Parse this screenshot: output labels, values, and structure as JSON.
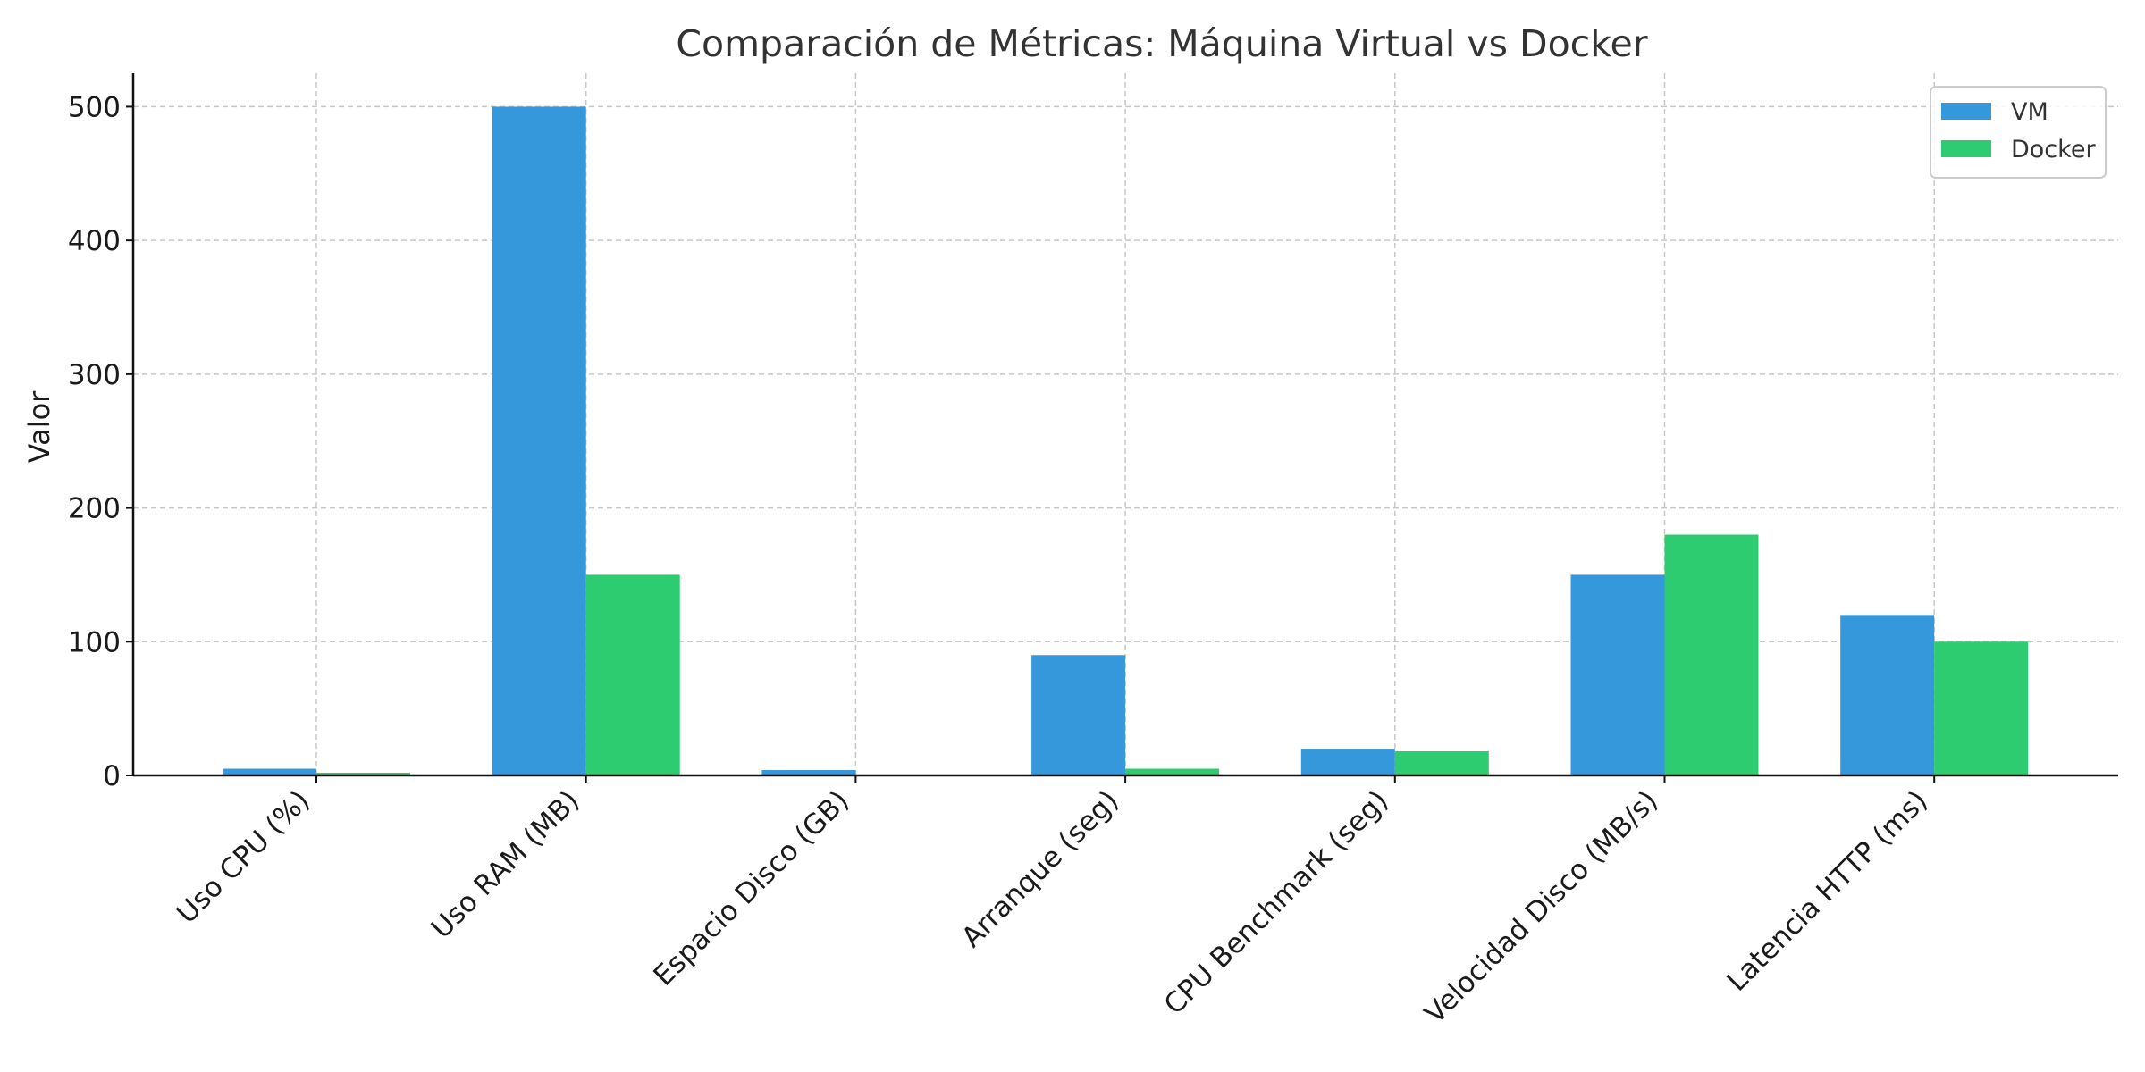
{
  "chart_data": {
    "type": "bar",
    "title": "Comparación de Métricas: Máquina Virtual vs Docker",
    "xlabel": "",
    "ylabel": "Valor",
    "ylim": [
      0,
      525
    ],
    "yticks": [
      0,
      100,
      200,
      300,
      400,
      500
    ],
    "grid": true,
    "legend_position": "top-right",
    "categories": [
      "Uso CPU (%)",
      "Uso RAM (MB)",
      "Espacio Disco (GB)",
      "Arranque (seg)",
      "CPU Benchmark (seg)",
      "Velocidad Disco (MB/s)",
      "Latencia HTTP (ms)"
    ],
    "series": [
      {
        "name": "VM",
        "color": "#3498db",
        "values": [
          5,
          500,
          4,
          90,
          20,
          150,
          120
        ]
      },
      {
        "name": "Docker",
        "color": "#2ecc71",
        "values": [
          2,
          150,
          0.2,
          5,
          18,
          180,
          100
        ]
      }
    ]
  }
}
